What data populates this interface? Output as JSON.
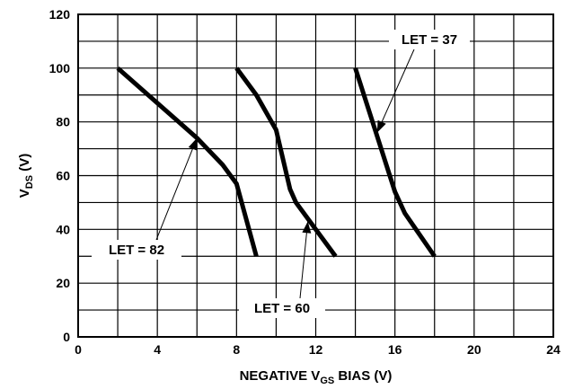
{
  "chart_data": {
    "type": "line",
    "title": "",
    "xlabel": {
      "main": "NEGATIVE V",
      "sub": "GS",
      "tail": " BIAS (V)"
    },
    "ylabel": {
      "main": "V",
      "sub": "DS",
      "tail": " (V)"
    },
    "xlim": [
      0,
      24
    ],
    "ylim": [
      0,
      120
    ],
    "xticks": [
      0,
      2,
      4,
      6,
      8,
      10,
      12,
      14,
      16,
      18,
      20,
      22,
      24
    ],
    "xtick_labels": [
      "0",
      "",
      "4",
      "",
      "8",
      "",
      "12",
      "",
      "16",
      "",
      "20",
      "",
      "24"
    ],
    "yticks": [
      0,
      10,
      20,
      30,
      40,
      50,
      60,
      70,
      80,
      90,
      100,
      110,
      120
    ],
    "ytick_labels": [
      "0",
      "",
      "20",
      "",
      "40",
      "",
      "60",
      "",
      "80",
      "",
      "100",
      "",
      "120"
    ],
    "grid": true,
    "series": [
      {
        "name": "LET = 82",
        "x": [
          2,
          4,
          6,
          7.3,
          8,
          9
        ],
        "y": [
          100,
          87,
          74,
          64,
          57,
          30
        ]
      },
      {
        "name": "LET = 60",
        "x": [
          8,
          9,
          10,
          10.7,
          11,
          13
        ],
        "y": [
          100,
          90,
          77,
          55,
          50,
          30
        ]
      },
      {
        "name": "LET = 37",
        "x": [
          14,
          15,
          16,
          16.5,
          18
        ],
        "y": [
          100,
          77,
          54,
          46,
          30
        ]
      }
    ],
    "annotations": [
      {
        "text": "LET = 82",
        "target": [
          6,
          74
        ]
      },
      {
        "text": "LET = 60",
        "target": [
          11.6,
          43
        ]
      },
      {
        "text": "LET = 37",
        "target": [
          15.1,
          76
        ]
      }
    ]
  }
}
